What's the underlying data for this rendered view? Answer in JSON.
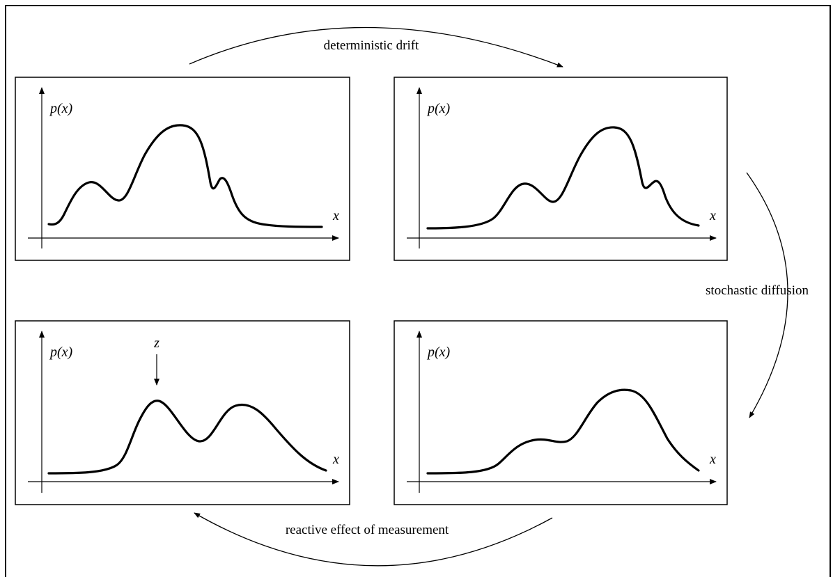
{
  "transitions": {
    "drift": "deterministic drift",
    "diffusion": "stochastic diffusion",
    "measurement": "reactive effect of measurement"
  },
  "panels": [
    {
      "id": "top-left",
      "y_label": "p(x)",
      "x_label": "x"
    },
    {
      "id": "top-right",
      "y_label": "p(x)",
      "x_label": "x"
    },
    {
      "id": "bottom-left",
      "y_label": "p(x)",
      "x_label": "x",
      "measurement_label": "z"
    },
    {
      "id": "bottom-right",
      "y_label": "p(x)",
      "x_label": "x"
    }
  ]
}
